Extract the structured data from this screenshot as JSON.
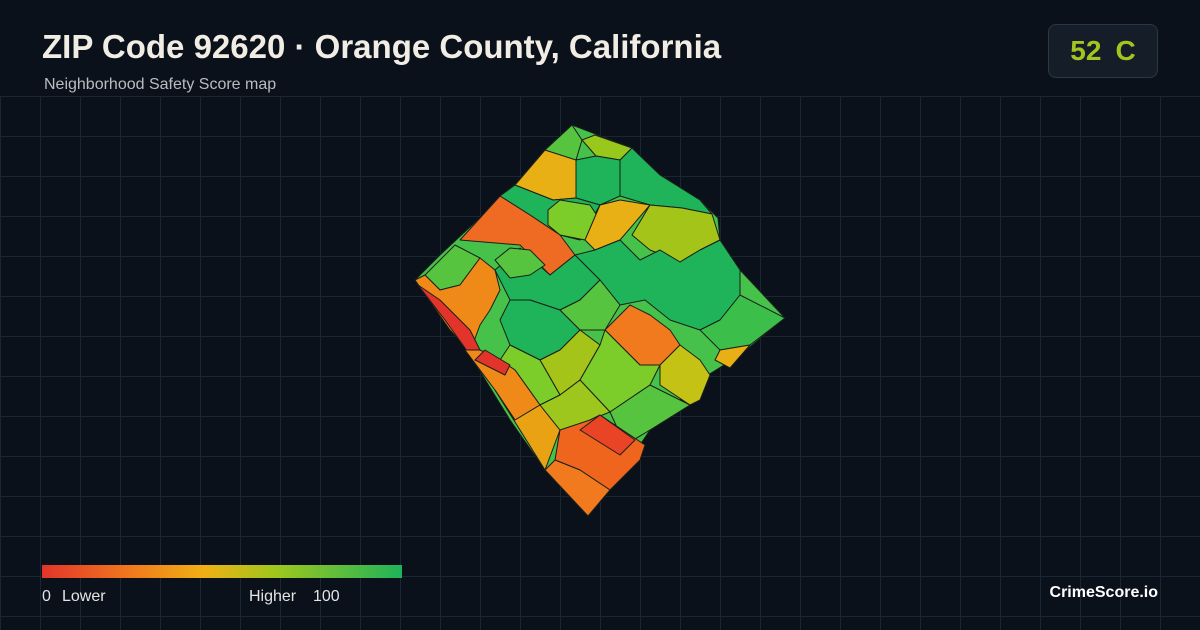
{
  "header": {
    "title": "ZIP Code 92620 · Orange County, California",
    "subtitle": "Neighborhood Safety Score map"
  },
  "score": {
    "value": 52,
    "grade": "C"
  },
  "legend": {
    "min": 0,
    "low_label": "Lower",
    "high_label": "Higher",
    "max": 100
  },
  "footer": {
    "brand": "CrimeScore.io"
  }
}
